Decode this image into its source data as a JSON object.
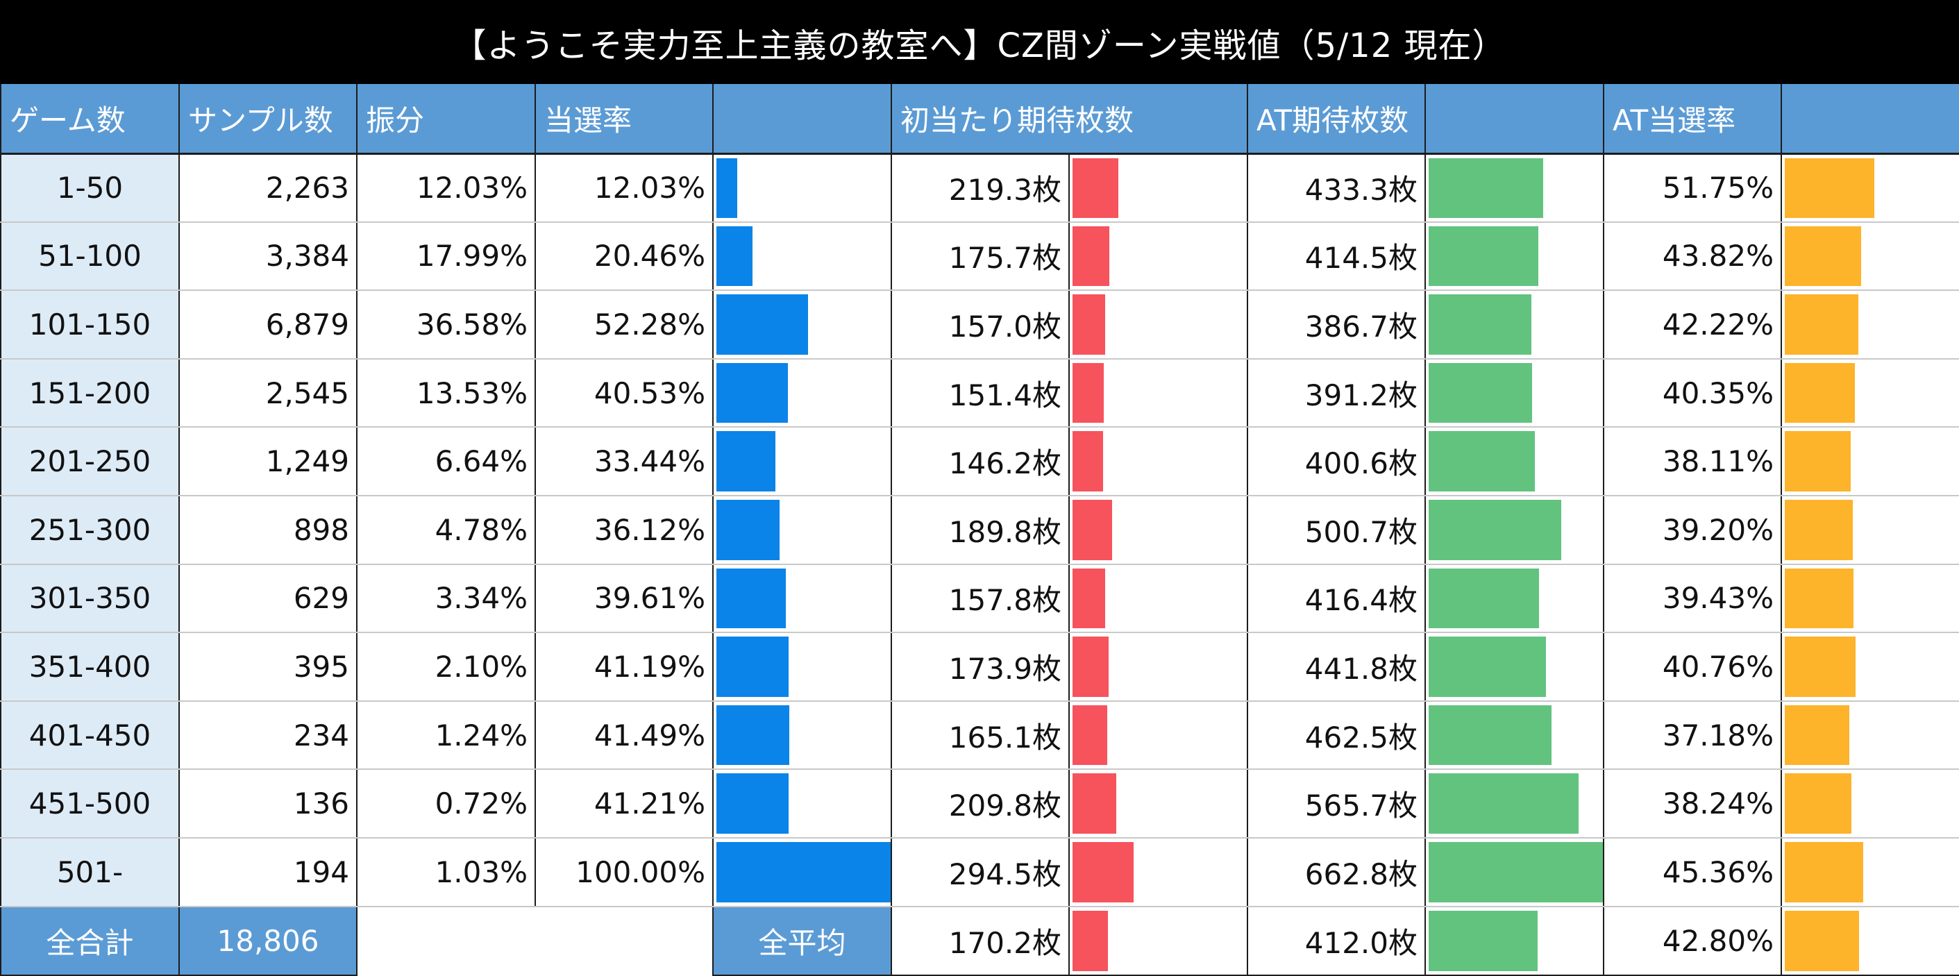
{
  "title": "【ようこそ実力至上主義の教室へ】CZ間ゾーン実戦値（5/12 現在）",
  "headers": {
    "games": "ゲーム数",
    "samples": "サンプル数",
    "distribution": "振分",
    "win_rate": "当選率",
    "initial_expected": "初当たり期待枚数",
    "at_expected": "AT期待枚数",
    "at_win_rate": "AT当選率"
  },
  "rows": [
    {
      "range": "1-50",
      "samples": "2,263",
      "dist": "12.03%",
      "rate": "12.03%",
      "initial": "219.3枚",
      "at": "433.3枚",
      "at_rate": "51.75%"
    },
    {
      "range": "51-100",
      "samples": "3,384",
      "dist": "17.99%",
      "rate": "20.46%",
      "initial": "175.7枚",
      "at": "414.5枚",
      "at_rate": "43.82%"
    },
    {
      "range": "101-150",
      "samples": "6,879",
      "dist": "36.58%",
      "rate": "52.28%",
      "initial": "157.0枚",
      "at": "386.7枚",
      "at_rate": "42.22%"
    },
    {
      "range": "151-200",
      "samples": "2,545",
      "dist": "13.53%",
      "rate": "40.53%",
      "initial": "151.4枚",
      "at": "391.2枚",
      "at_rate": "40.35%"
    },
    {
      "range": "201-250",
      "samples": "1,249",
      "dist": "6.64%",
      "rate": "33.44%",
      "initial": "146.2枚",
      "at": "400.6枚",
      "at_rate": "38.11%"
    },
    {
      "range": "251-300",
      "samples": "898",
      "dist": "4.78%",
      "rate": "36.12%",
      "initial": "189.8枚",
      "at": "500.7枚",
      "at_rate": "39.20%"
    },
    {
      "range": "301-350",
      "samples": "629",
      "dist": "3.34%",
      "rate": "39.61%",
      "initial": "157.8枚",
      "at": "416.4枚",
      "at_rate": "39.43%"
    },
    {
      "range": "351-400",
      "samples": "395",
      "dist": "2.10%",
      "rate": "41.19%",
      "initial": "173.9枚",
      "at": "441.8枚",
      "at_rate": "40.76%"
    },
    {
      "range": "401-450",
      "samples": "234",
      "dist": "1.24%",
      "rate": "41.49%",
      "initial": "165.1枚",
      "at": "462.5枚",
      "at_rate": "37.18%"
    },
    {
      "range": "451-500",
      "samples": "136",
      "dist": "0.72%",
      "rate": "41.21%",
      "initial": "209.8枚",
      "at": "565.7枚",
      "at_rate": "38.24%"
    },
    {
      "range": "501-",
      "samples": "194",
      "dist": "1.03%",
      "rate": "100.00%",
      "initial": "294.5枚",
      "at": "662.8枚",
      "at_rate": "45.36%"
    }
  ],
  "totals": {
    "total_label": "全合計",
    "total_samples": "18,806",
    "avg_label": "全平均",
    "avg_initial": "170.2枚",
    "avg_at": "412.0枚",
    "avg_at_rate": "42.80%"
  },
  "bar_values": {
    "rate": [
      12.03,
      20.46,
      52.28,
      40.53,
      33.44,
      36.12,
      39.61,
      41.19,
      41.49,
      41.21,
      100.0
    ],
    "initial": [
      219.3,
      175.7,
      157.0,
      151.4,
      146.2,
      189.8,
      157.8,
      173.9,
      165.1,
      209.8,
      294.5,
      170.2
    ],
    "at": [
      433.3,
      414.5,
      386.7,
      391.2,
      400.6,
      500.7,
      416.4,
      441.8,
      462.5,
      565.7,
      662.8,
      412.0
    ],
    "at_rate": [
      51.75,
      43.82,
      42.22,
      40.35,
      38.11,
      39.2,
      39.43,
      40.76,
      37.18,
      38.24,
      45.36,
      42.8
    ]
  },
  "colors": {
    "header_bg": "#5b9bd5",
    "range_bg": "#ddebf7",
    "rate_bar": "#0a84e8",
    "initial_bar": "#f6535d",
    "at_bar": "#62c37f",
    "at_rate_bar": "#fdb32a"
  }
}
